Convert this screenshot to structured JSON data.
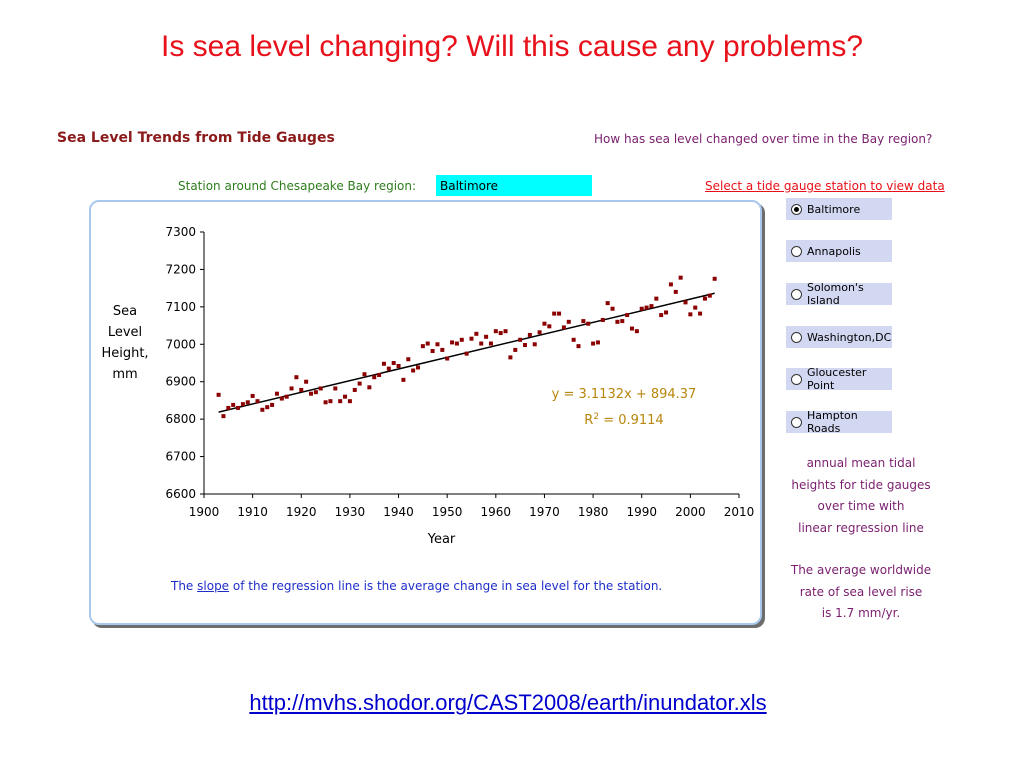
{
  "slide": {
    "title": "Is sea level changing?  Will this cause any problems?",
    "source_url": "http://mvhs.shodor.org/CAST2008/earth/inundator.xls"
  },
  "panel": {
    "title": "Sea Level Trends from Tide Gauges",
    "question": "How has sea level changed over time in the Bay region?",
    "station_label": "Station around Chesapeake Bay region:",
    "station_value": "Baltimore",
    "select_link": "Select a tide gauge station to view data",
    "slope_note_pre": "The ",
    "slope_note_link": "slope",
    "slope_note_post": " of the regression line is the average change in sea level for the station."
  },
  "stations": [
    {
      "label": "Baltimore",
      "selected": true
    },
    {
      "label": "Annapolis",
      "selected": false
    },
    {
      "label": "Solomon's Island",
      "selected": false
    },
    {
      "label": "Washington,DC",
      "selected": false
    },
    {
      "label": "Gloucester Point",
      "selected": false
    },
    {
      "label": "Hampton Roads",
      "selected": false
    }
  ],
  "side_notes": {
    "description": [
      "annual mean tidal",
      "heights for tide gauges",
      "over time with",
      "linear regression line"
    ],
    "worldwide": [
      "The average worldwide",
      "rate of sea level rise",
      "is 1.7 mm/yr."
    ]
  },
  "colors": {
    "title_red": "#e8101a",
    "point": "#8b0000",
    "trend_line": "#000000",
    "equation": "#b8860b",
    "station_highlight": "#00ffff",
    "radio_background": "#d2d8f2",
    "frame_border": "#a8c8ec"
  },
  "chart_data": {
    "type": "scatter",
    "xlabel": "Year",
    "ylabel": [
      "Sea",
      "Level",
      "Height,",
      "mm"
    ],
    "xlim": [
      1900,
      2010
    ],
    "ylim": [
      6600,
      7300
    ],
    "xticks": [
      1900,
      1910,
      1920,
      1930,
      1940,
      1950,
      1960,
      1970,
      1980,
      1990,
      2000,
      2010
    ],
    "yticks": [
      6600,
      6700,
      6800,
      6900,
      7000,
      7100,
      7200,
      7300
    ],
    "grid": false,
    "trendline": {
      "slope": 3.1132,
      "intercept": 894.37,
      "x_range": [
        1903,
        2005
      ],
      "equation": "y = 3.1132x + 894.37",
      "r2_label": "R",
      "r2_exp": "2",
      "r2_value": " = 0.9114"
    },
    "points": [
      [
        1903,
        6865
      ],
      [
        1904,
        6808
      ],
      [
        1905,
        6830
      ],
      [
        1906,
        6838
      ],
      [
        1907,
        6830
      ],
      [
        1908,
        6840
      ],
      [
        1909,
        6845
      ],
      [
        1910,
        6862
      ],
      [
        1911,
        6848
      ],
      [
        1912,
        6825
      ],
      [
        1913,
        6832
      ],
      [
        1914,
        6838
      ],
      [
        1915,
        6868
      ],
      [
        1916,
        6855
      ],
      [
        1917,
        6860
      ],
      [
        1918,
        6882
      ],
      [
        1919,
        6912
      ],
      [
        1920,
        6878
      ],
      [
        1921,
        6900
      ],
      [
        1922,
        6868
      ],
      [
        1923,
        6872
      ],
      [
        1924,
        6882
      ],
      [
        1925,
        6845
      ],
      [
        1926,
        6848
      ],
      [
        1927,
        6882
      ],
      [
        1928,
        6848
      ],
      [
        1929,
        6860
      ],
      [
        1930,
        6848
      ],
      [
        1931,
        6878
      ],
      [
        1932,
        6895
      ],
      [
        1933,
        6920
      ],
      [
        1934,
        6885
      ],
      [
        1935,
        6912
      ],
      [
        1936,
        6918
      ],
      [
        1937,
        6948
      ],
      [
        1938,
        6935
      ],
      [
        1939,
        6950
      ],
      [
        1940,
        6942
      ],
      [
        1941,
        6905
      ],
      [
        1942,
        6960
      ],
      [
        1943,
        6930
      ],
      [
        1944,
        6938
      ],
      [
        1945,
        6995
      ],
      [
        1946,
        7002
      ],
      [
        1947,
        6982
      ],
      [
        1948,
        7000
      ],
      [
        1949,
        6985
      ],
      [
        1950,
        6962
      ],
      [
        1951,
        7005
      ],
      [
        1952,
        7002
      ],
      [
        1953,
        7012
      ],
      [
        1954,
        6975
      ],
      [
        1955,
        7015
      ],
      [
        1956,
        7028
      ],
      [
        1957,
        7002
      ],
      [
        1958,
        7020
      ],
      [
        1959,
        7002
      ],
      [
        1960,
        7035
      ],
      [
        1961,
        7030
      ],
      [
        1962,
        7035
      ],
      [
        1963,
        6965
      ],
      [
        1964,
        6985
      ],
      [
        1965,
        7012
      ],
      [
        1966,
        6998
      ],
      [
        1967,
        7025
      ],
      [
        1968,
        7000
      ],
      [
        1969,
        7032
      ],
      [
        1970,
        7055
      ],
      [
        1971,
        7048
      ],
      [
        1972,
        7082
      ],
      [
        1973,
        7082
      ],
      [
        1974,
        7045
      ],
      [
        1975,
        7060
      ],
      [
        1976,
        7012
      ],
      [
        1977,
        6995
      ],
      [
        1978,
        7062
      ],
      [
        1979,
        7055
      ],
      [
        1980,
        7002
      ],
      [
        1981,
        7005
      ],
      [
        1982,
        7065
      ],
      [
        1983,
        7110
      ],
      [
        1984,
        7095
      ],
      [
        1985,
        7060
      ],
      [
        1986,
        7062
      ],
      [
        1987,
        7078
      ],
      [
        1988,
        7042
      ],
      [
        1989,
        7035
      ],
      [
        1990,
        7095
      ],
      [
        1991,
        7098
      ],
      [
        1992,
        7102
      ],
      [
        1993,
        7122
      ],
      [
        1994,
        7078
      ],
      [
        1995,
        7085
      ],
      [
        1996,
        7160
      ],
      [
        1997,
        7140
      ],
      [
        1998,
        7178
      ],
      [
        1999,
        7112
      ],
      [
        2000,
        7080
      ],
      [
        2001,
        7098
      ],
      [
        2002,
        7082
      ],
      [
        2003,
        7122
      ],
      [
        2004,
        7130
      ],
      [
        2005,
        7175
      ]
    ]
  }
}
